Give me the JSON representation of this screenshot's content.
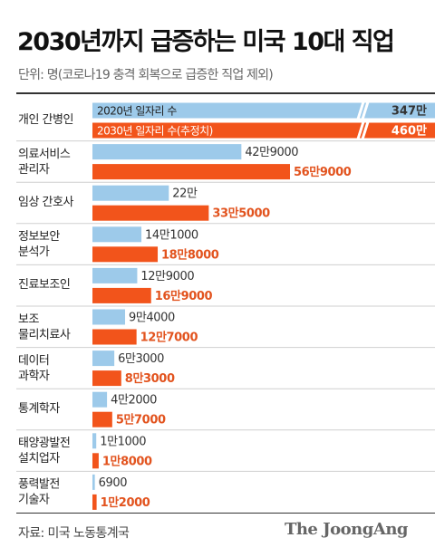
{
  "title": "2030년까지 급증하는 미국 10대 직업",
  "subtitle": "단위: 명(코로나19 충격 회복으로 급증한 직업 제외)",
  "source": "자료: 미국 노동통계국",
  "brand": "The JoongAng",
  "colors": {
    "bar2020": "#9dcaea",
    "bar2030": "#f2541b",
    "text2020": "#333333",
    "text2030": "#e2531e",
    "separator": "#cfcfcf",
    "background": "#ffffff"
  },
  "chart_data": {
    "type": "bar",
    "orientation": "horizontal",
    "categories": [
      [
        "개인 간병인"
      ],
      [
        "의료서비스",
        "관리자"
      ],
      [
        "임상 간호사"
      ],
      [
        "정보보안",
        "분석가"
      ],
      [
        "진료보조인"
      ],
      [
        "보조",
        "물리치료사"
      ],
      [
        "데이터",
        "과학자"
      ],
      [
        "통계학자"
      ],
      [
        "태양광발전",
        "설치업자"
      ],
      [
        "풍력발전",
        "기술자"
      ]
    ],
    "series": [
      {
        "name": "2020년 일자리 수",
        "values": [
          3470000,
          429000,
          220000,
          141000,
          129000,
          94000,
          63000,
          42000,
          11000,
          6900
        ],
        "labels": [
          "347만",
          "42만9000",
          "22만",
          "14만1000",
          "12만9000",
          "9만4000",
          "6만3000",
          "4만2000",
          "1만1000",
          "6900"
        ]
      },
      {
        "name": "2030년 일자리 수(추정치)",
        "values": [
          4600000,
          569000,
          335000,
          188000,
          169000,
          127000,
          83000,
          57000,
          18000,
          12000
        ],
        "labels": [
          "460만",
          "56만9000",
          "33만5000",
          "18만8000",
          "16만9000",
          "12만7000",
          "8만3000",
          "5만7000",
          "1만8000",
          "1만2000"
        ]
      }
    ],
    "axis_break": "first category bars extend past the plot edge; values shown at right"
  }
}
